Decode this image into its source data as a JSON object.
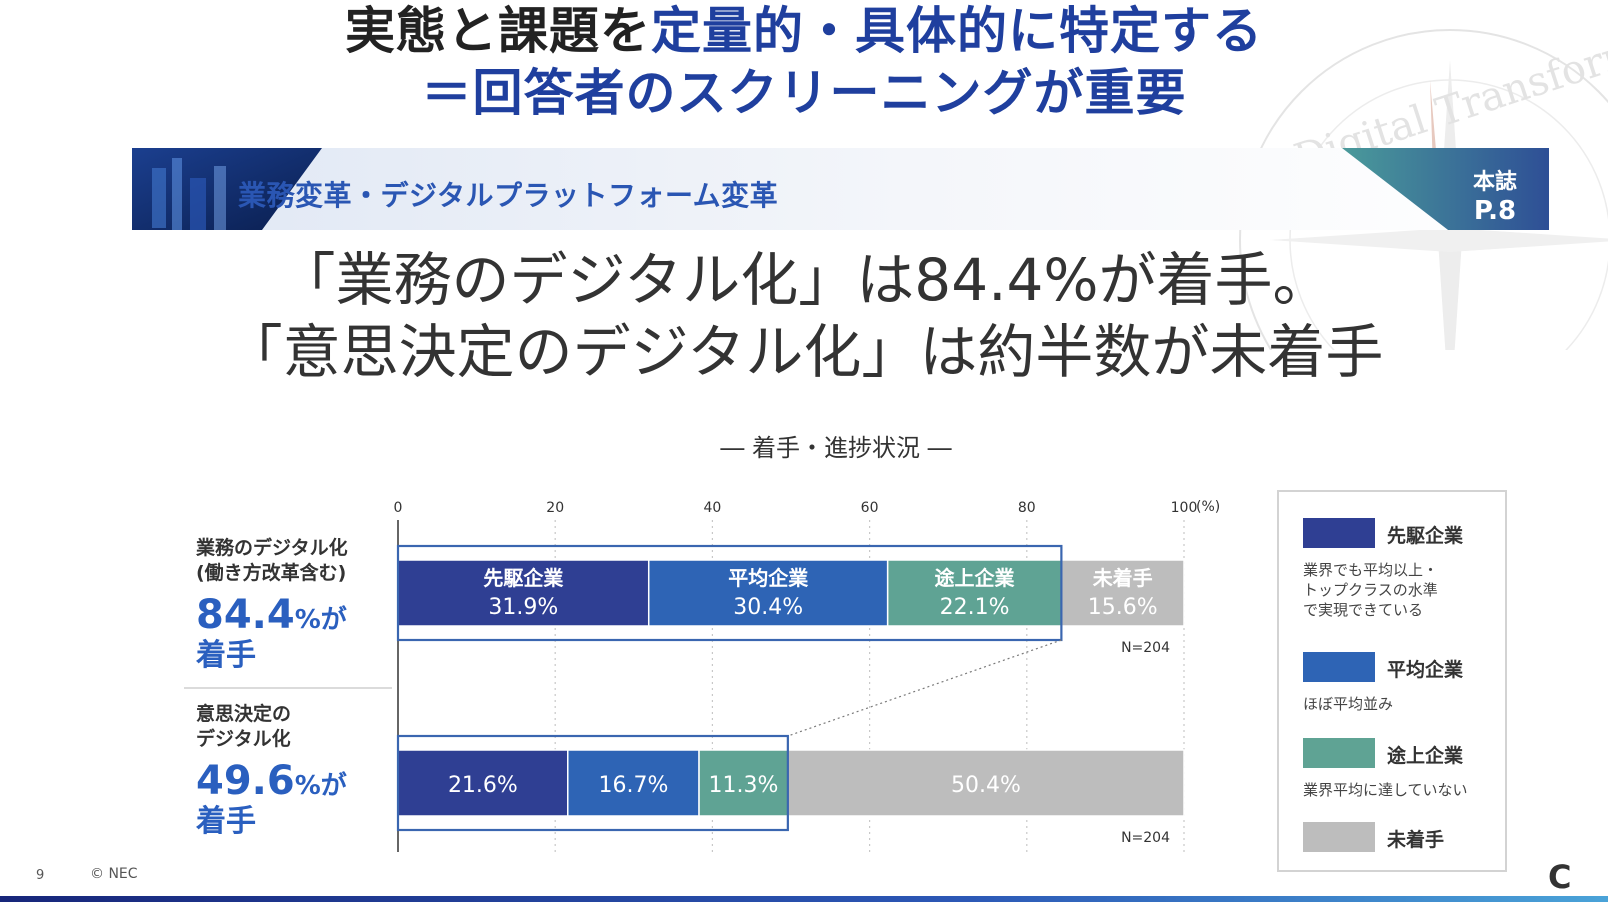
{
  "slide": {
    "title_line1_a": "実態と課題を",
    "title_line1_b": "定量的・具体的に特定する",
    "title_line2": "＝回答者のスクリーニングが重要",
    "page_number": "9",
    "copyright": "© NEC",
    "logo_text": "C"
  },
  "banner": {
    "text": "業務変革・デジタルプラットフォーム変革",
    "ref_a": "本誌",
    "ref_b": "P.8"
  },
  "watermark": {
    "text": "Digital Transformation"
  },
  "headline": {
    "line1": "「業務のデジタル化」は84.4%が着手。",
    "line2": "「意思決定のデジタル化」は約半数が未着手"
  },
  "rows": [
    {
      "label1": "業務のデジタル化",
      "label2": "(働き方改革含む)",
      "pct": "84.4",
      "suffix": "%が",
      "tail": "着手"
    },
    {
      "label1": "意思決定の",
      "label2": "デジタル化",
      "pct": "49.6",
      "suffix": "%が",
      "tail": "着手"
    }
  ],
  "legend": [
    {
      "name": "先駆企業",
      "desc": [
        "業界でも平均以上・",
        "トップクラスの水準",
        "で実現できている"
      ]
    },
    {
      "name": "平均企業",
      "desc": [
        "ほぼ平均並み"
      ]
    },
    {
      "name": "途上企業",
      "desc": [
        "業界平均に達していない"
      ]
    },
    {
      "name": "未着手",
      "desc": []
    }
  ],
  "chart_data": {
    "type": "bar",
    "orientation": "horizontal",
    "stacked": true,
    "title": "― 着手・進捗状況 ―",
    "x_unit_label": "(%)",
    "xlim": [
      0,
      100
    ],
    "x_ticks": [
      0,
      20,
      40,
      60,
      80,
      100
    ],
    "grid": true,
    "legend_position": "right",
    "categories": [
      "業務のデジタル化(働き方改革含む)",
      "意思決定のデジタル化"
    ],
    "series": [
      {
        "name": "先駆企業",
        "color": "#2f3f93",
        "values": [
          31.9,
          21.6
        ]
      },
      {
        "name": "平均企業",
        "color": "#2e64b5",
        "values": [
          30.4,
          16.7
        ]
      },
      {
        "name": "途上企業",
        "color": "#5fa394",
        "values": [
          22.1,
          11.3
        ]
      },
      {
        "name": "未着手",
        "color": "#bdbdbd",
        "values": [
          15.6,
          50.4
        ]
      }
    ],
    "bar_label_names": [
      [
        "先駆企業",
        "平均企業",
        "途上企業",
        "未着手"
      ],
      []
    ],
    "n_labels": [
      "N=204",
      "N=204"
    ]
  }
}
